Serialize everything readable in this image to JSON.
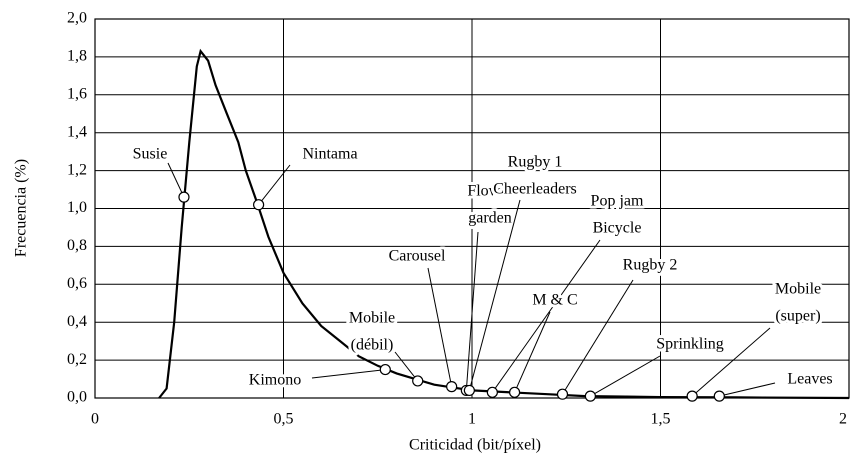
{
  "chart_data": {
    "type": "line",
    "x_label": "Criticidad (bit/píxel)",
    "y_label": "Frecuencia (%)",
    "xlim": [
      0,
      2
    ],
    "ylim": [
      0,
      2
    ],
    "xticks": [
      0,
      {
        "value": 0.5,
        "label": "0,5"
      },
      1,
      {
        "value": 1.5,
        "label": "1,5"
      },
      2
    ],
    "yticks": [
      {
        "value": 0,
        "label": "0,0"
      },
      {
        "value": 0.2,
        "label": "0,2"
      },
      {
        "value": 0.4,
        "label": "0,4"
      },
      {
        "value": 0.6,
        "label": "0,6"
      },
      {
        "value": 0.8,
        "label": "0,8"
      },
      {
        "value": 1.0,
        "label": "1,0"
      },
      {
        "value": 1.2,
        "label": "1,2"
      },
      {
        "value": 1.4,
        "label": "1,4"
      },
      {
        "value": 1.6,
        "label": "1,6"
      },
      {
        "value": 1.8,
        "label": "1,8"
      },
      {
        "value": 2.0,
        "label": "2,0"
      }
    ],
    "grid": true,
    "color": "#000000",
    "x": [
      0.17,
      0.19,
      0.21,
      0.23,
      0.25,
      0.27,
      0.28,
      0.3,
      0.32,
      0.35,
      0.38,
      0.4,
      0.43,
      0.46,
      0.5,
      0.55,
      0.6,
      0.65,
      0.7,
      0.75,
      0.8,
      0.85,
      0.9,
      0.95,
      1.0,
      1.1,
      1.2,
      1.3,
      1.5,
      1.7,
      2.0
    ],
    "values": [
      0,
      0.05,
      0.4,
      0.9,
      1.35,
      1.75,
      1.83,
      1.78,
      1.65,
      1.5,
      1.35,
      1.2,
      1.03,
      0.85,
      0.66,
      0.5,
      0.38,
      0.3,
      0.22,
      0.17,
      0.13,
      0.1,
      0.07,
      0.055,
      0.04,
      0.03,
      0.02,
      0.01,
      0.005,
      0.003,
      0
    ],
    "annotations": [
      {
        "label": [
          "Susie"
        ],
        "x": 0.236,
        "y": 1.06
      },
      {
        "label": [
          "Nintama"
        ],
        "x": 0.434,
        "y": 1.02
      },
      {
        "label": [
          "Kimono"
        ],
        "x": 0.77,
        "y": 0.15
      },
      {
        "label": [
          "Mobile",
          "(débil)"
        ],
        "x": 0.856,
        "y": 0.09
      },
      {
        "label": [
          "Carousel"
        ],
        "x": 0.946,
        "y": 0.06
      },
      {
        "label": [
          "Flower",
          "garden"
        ],
        "x": 0.985,
        "y": 0.04
      },
      {
        "label": [
          "Rugby 1",
          "Cheerleaders"
        ],
        "x": 0.993,
        "y": 0.04
      },
      {
        "label": [
          "Pop jam",
          "Bicycle"
        ],
        "x": 1.054,
        "y": 0.03
      },
      {
        "label": [
          "M & C"
        ],
        "x": 1.113,
        "y": 0.03
      },
      {
        "label": [
          "Rugby 2"
        ],
        "x": 1.24,
        "y": 0.02
      },
      {
        "label": [
          "Sprinkling"
        ],
        "x": 1.314,
        "y": 0.01
      },
      {
        "label": [
          "Mobile",
          "(super)"
        ],
        "x": 1.584,
        "y": 0.01
      },
      {
        "label": [
          "Leaves"
        ],
        "x": 1.656,
        "y": 0.01
      }
    ]
  }
}
